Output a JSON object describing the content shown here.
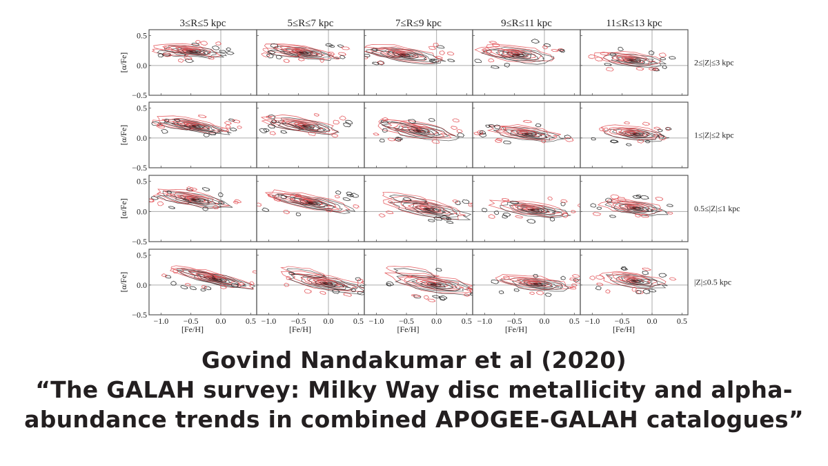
{
  "caption": {
    "line1": "Govind Nandakumar et al (2020)",
    "line2": "“The GALAH survey: Milky Way disc metallicity and alpha-",
    "line3": "abundance trends in combined APOGEE-GALAH catalogues”"
  },
  "colors": {
    "red_contour": "#e0454a",
    "black_contour": "#1a1a1a",
    "axes": "#555555",
    "gridline": "#aaaaaa",
    "caption_text": "#231f20"
  },
  "chart_data": {
    "type": "contour",
    "title": "",
    "layout": {
      "rows": 4,
      "cols": 5,
      "shared_x": true,
      "shared_y": true,
      "grid": "reference lines at x=0 and y=0"
    },
    "xlabel": "[Fe/H]",
    "ylabel": "[α/Fe]",
    "xlim": [
      -1.2,
      0.6
    ],
    "ylim": [
      -0.5,
      0.6
    ],
    "xticks": [
      "−1.0",
      "−0.5",
      "0.0",
      "0.5"
    ],
    "yticks": [
      "0.5",
      "0.0",
      "−0.5"
    ],
    "column_labels": [
      "3≤R≤5 kpc",
      "5≤R≤7 kpc",
      "7≤R≤9 kpc",
      "9≤R≤11 kpc",
      "11≤R≤13 kpc"
    ],
    "row_labels": [
      "2≤|Z|≤3 kpc",
      "1≤|Z|≤2 kpc",
      "0.5≤|Z|≤1 kpc",
      "|Z|≤0.5 kpc"
    ],
    "series": [
      {
        "name": "GALAH",
        "color": "#e0454a"
      },
      {
        "name": "APOGEE",
        "color": "#1a1a1a"
      }
    ],
    "panels": [
      {
        "row": 0,
        "col": 0,
        "peak_feh": -0.5,
        "peak_alpha": 0.24,
        "spread_feh": 0.55,
        "spread_alpha": 0.08,
        "slope": -0.12,
        "highalpha": true
      },
      {
        "row": 0,
        "col": 1,
        "peak_feh": -0.45,
        "peak_alpha": 0.22,
        "spread_feh": 0.6,
        "spread_alpha": 0.09,
        "slope": -0.15,
        "highalpha": true
      },
      {
        "row": 0,
        "col": 2,
        "peak_feh": -0.55,
        "peak_alpha": 0.18,
        "spread_feh": 0.65,
        "spread_alpha": 0.11,
        "slope": -0.15,
        "highalpha": true
      },
      {
        "row": 0,
        "col": 3,
        "peak_feh": -0.45,
        "peak_alpha": 0.18,
        "spread_feh": 0.6,
        "spread_alpha": 0.12,
        "slope": -0.12,
        "highalpha": true
      },
      {
        "row": 0,
        "col": 4,
        "peak_feh": -0.35,
        "peak_alpha": 0.09,
        "spread_feh": 0.55,
        "spread_alpha": 0.1,
        "slope": -0.1,
        "highalpha": false
      },
      {
        "row": 1,
        "col": 0,
        "peak_feh": -0.45,
        "peak_alpha": 0.2,
        "spread_feh": 0.6,
        "spread_alpha": 0.09,
        "slope": -0.18,
        "highalpha": true
      },
      {
        "row": 1,
        "col": 1,
        "peak_feh": -0.4,
        "peak_alpha": 0.2,
        "spread_feh": 0.62,
        "spread_alpha": 0.1,
        "slope": -0.18,
        "highalpha": true
      },
      {
        "row": 1,
        "col": 2,
        "peak_feh": -0.3,
        "peak_alpha": 0.12,
        "spread_feh": 0.65,
        "spread_alpha": 0.12,
        "slope": -0.16,
        "highalpha": true
      },
      {
        "row": 1,
        "col": 3,
        "peak_feh": -0.3,
        "peak_alpha": 0.07,
        "spread_feh": 0.6,
        "spread_alpha": 0.1,
        "slope": -0.12,
        "highalpha": false
      },
      {
        "row": 1,
        "col": 4,
        "peak_feh": -0.3,
        "peak_alpha": 0.07,
        "spread_feh": 0.55,
        "spread_alpha": 0.1,
        "slope": -0.1,
        "highalpha": false
      },
      {
        "row": 2,
        "col": 0,
        "peak_feh": -0.45,
        "peak_alpha": 0.2,
        "spread_feh": 0.6,
        "spread_alpha": 0.1,
        "slope": -0.2,
        "highalpha": true
      },
      {
        "row": 2,
        "col": 1,
        "peak_feh": -0.3,
        "peak_alpha": 0.15,
        "spread_feh": 0.7,
        "spread_alpha": 0.1,
        "slope": -0.2,
        "highalpha": true
      },
      {
        "row": 2,
        "col": 2,
        "peak_feh": -0.15,
        "peak_alpha": 0.04,
        "spread_feh": 0.7,
        "spread_alpha": 0.12,
        "slope": -0.18,
        "highalpha": true
      },
      {
        "row": 2,
        "col": 3,
        "peak_feh": -0.2,
        "peak_alpha": 0.03,
        "spread_feh": 0.65,
        "spread_alpha": 0.1,
        "slope": -0.14,
        "highalpha": false
      },
      {
        "row": 2,
        "col": 4,
        "peak_feh": -0.3,
        "peak_alpha": 0.06,
        "spread_feh": 0.55,
        "spread_alpha": 0.1,
        "slope": -0.12,
        "highalpha": false
      },
      {
        "row": 3,
        "col": 0,
        "peak_feh": -0.1,
        "peak_alpha": 0.1,
        "spread_feh": 0.7,
        "spread_alpha": 0.09,
        "slope": -0.22,
        "highalpha": true
      },
      {
        "row": 3,
        "col": 1,
        "peak_feh": -0.05,
        "peak_alpha": 0.03,
        "spread_feh": 0.7,
        "spread_alpha": 0.11,
        "slope": -0.18,
        "highalpha": true
      },
      {
        "row": 3,
        "col": 2,
        "peak_feh": -0.05,
        "peak_alpha": 0.01,
        "spread_feh": 0.75,
        "spread_alpha": 0.13,
        "slope": -0.15,
        "highalpha": true
      },
      {
        "row": 3,
        "col": 3,
        "peak_feh": -0.15,
        "peak_alpha": 0.02,
        "spread_feh": 0.65,
        "spread_alpha": 0.1,
        "slope": -0.12,
        "highalpha": false
      },
      {
        "row": 3,
        "col": 4,
        "peak_feh": -0.3,
        "peak_alpha": 0.07,
        "spread_feh": 0.55,
        "spread_alpha": 0.11,
        "slope": -0.14,
        "highalpha": false
      }
    ]
  }
}
